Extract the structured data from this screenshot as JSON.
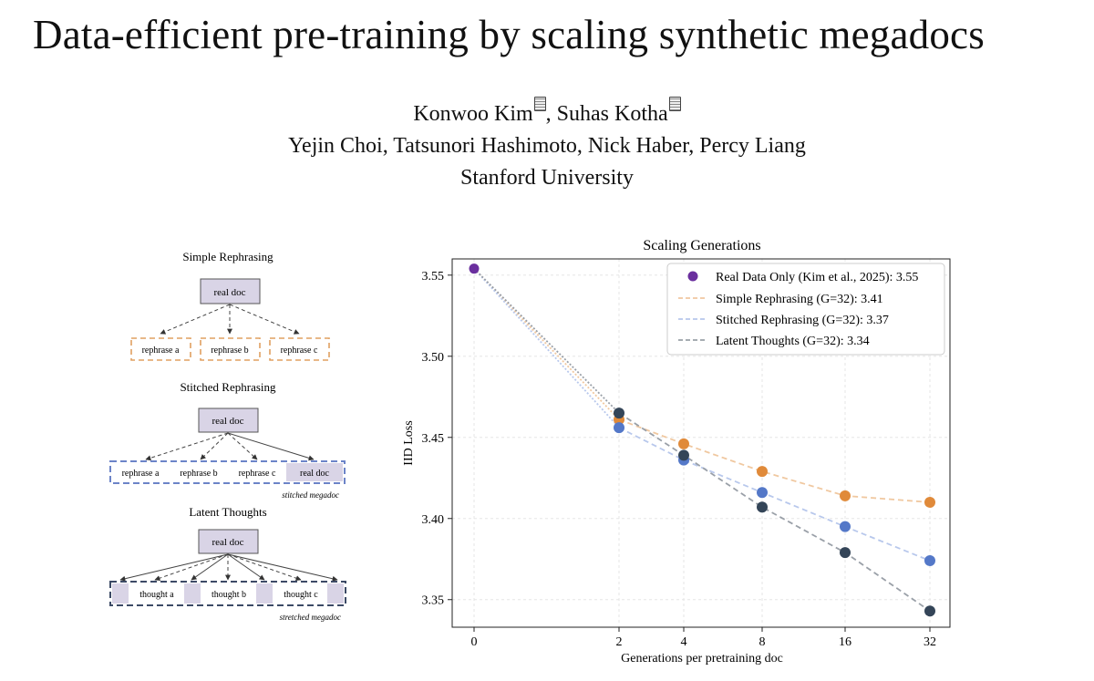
{
  "paper": {
    "title": "Data-efficient pre-training by scaling synthetic megadocs",
    "authors_line1_a": "Konwoo Kim",
    "authors_line1_sep": ", ",
    "authors_line1_b": "Suhas Kotha",
    "authors_line2": "Yejin Choi, Tatsunori Hashimoto, Nick Haber, Percy Liang",
    "affiliation": "Stanford University",
    "equal_contribution_icon": "equal-contribution-icon"
  },
  "diagram": {
    "simple": {
      "title": "Simple Rephrasing",
      "root": "real doc",
      "children": [
        "rephrase a",
        "rephrase b",
        "rephrase c"
      ]
    },
    "stitched": {
      "title": "Stitched Rephrasing",
      "root": "real doc",
      "segments": [
        "rephrase a",
        "rephrase b",
        "rephrase c",
        "real doc"
      ],
      "caption": "stitched megadoc"
    },
    "latent": {
      "title": "Latent Thoughts",
      "root": "real doc",
      "segments": [
        "thought a",
        "thought b",
        "thought c"
      ],
      "caption": "stretched megadoc"
    },
    "colors": {
      "box_fill": "#d9d4e6",
      "orange": "#e0a060",
      "blue": "#6c84c8",
      "navy": "#3c4a66"
    }
  },
  "chart_data": {
    "type": "line",
    "title": "Scaling Generations",
    "xlabel": "Generations per pretraining doc",
    "ylabel": "IID Loss",
    "x_ticks": [
      "0",
      "2",
      "4",
      "8",
      "16",
      "32"
    ],
    "y_ticks": [
      "3.35",
      "3.40",
      "3.45",
      "3.50",
      "3.55"
    ],
    "ylim": [
      3.333,
      3.56
    ],
    "grid": true,
    "legend_position": "top-right",
    "baseline": {
      "name": "Real Data Only (Kim et al., 2025): 3.55",
      "x": 0,
      "value": 3.554,
      "color": "#6a2f9e"
    },
    "series": [
      {
        "name": "Simple Rephrasing (G=32): 3.41",
        "color": "#e08a3a",
        "line_color": "#f0c8a0",
        "x": [
          2,
          4,
          8,
          16,
          32
        ],
        "values": [
          3.461,
          3.446,
          3.429,
          3.414,
          3.41
        ]
      },
      {
        "name": "Stitched Rephrasing (G=32): 3.37",
        "color": "#5478c8",
        "line_color": "#b8c8ec",
        "x": [
          2,
          4,
          8,
          16,
          32
        ],
        "values": [
          3.456,
          3.436,
          3.416,
          3.395,
          3.374
        ]
      },
      {
        "name": "Latent Thoughts (G=32): 3.34",
        "color": "#344558",
        "line_color": "#9aa0a8",
        "x": [
          2,
          4,
          8,
          16,
          32
        ],
        "values": [
          3.465,
          3.439,
          3.407,
          3.379,
          3.343
        ]
      }
    ]
  }
}
